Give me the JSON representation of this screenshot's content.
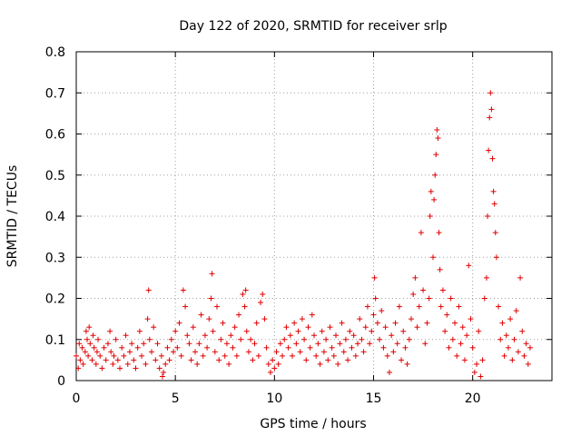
{
  "chart_data": {
    "type": "scatter",
    "title": "Day 122 of 2020, SRMTID for receiver srlp",
    "xlabel": "GPS time / hours",
    "ylabel": "SRMTID / TECUs",
    "xlim": [
      0,
      24
    ],
    "ylim": [
      0,
      0.8
    ],
    "xticks": [
      0,
      5,
      10,
      15,
      20
    ],
    "yticks": [
      0,
      0.1,
      0.2,
      0.3,
      0.4,
      0.5,
      0.6,
      0.7,
      0.8
    ],
    "xtick_labels": [
      "0",
      "5",
      "10",
      "15",
      "20"
    ],
    "ytick_labels": [
      "0",
      "0.1",
      "0.2",
      "0.3",
      "0.4",
      "0.5",
      "0.6",
      "0.7",
      "0.8"
    ],
    "grid": true,
    "marker": "+",
    "series": [
      {
        "name": "SRMTID",
        "color": "#e00000",
        "points": [
          [
            0.0,
            0.06
          ],
          [
            0.1,
            0.03
          ],
          [
            0.15,
            0.09
          ],
          [
            0.2,
            0.05
          ],
          [
            0.3,
            0.08
          ],
          [
            0.35,
            0.04
          ],
          [
            0.45,
            0.07
          ],
          [
            0.5,
            0.12
          ],
          [
            0.55,
            0.1
          ],
          [
            0.6,
            0.06
          ],
          [
            0.65,
            0.13
          ],
          [
            0.7,
            0.09
          ],
          [
            0.8,
            0.05
          ],
          [
            0.85,
            0.11
          ],
          [
            0.9,
            0.08
          ],
          [
            1.0,
            0.04
          ],
          [
            1.05,
            0.07
          ],
          [
            1.1,
            0.1
          ],
          [
            1.2,
            0.06
          ],
          [
            1.3,
            0.03
          ],
          [
            1.4,
            0.08
          ],
          [
            1.5,
            0.05
          ],
          [
            1.6,
            0.09
          ],
          [
            1.7,
            0.12
          ],
          [
            1.75,
            0.07
          ],
          [
            1.85,
            0.04
          ],
          [
            1.9,
            0.06
          ],
          [
            2.0,
            0.1
          ],
          [
            2.1,
            0.05
          ],
          [
            2.2,
            0.03
          ],
          [
            2.3,
            0.08
          ],
          [
            2.4,
            0.06
          ],
          [
            2.5,
            0.11
          ],
          [
            2.6,
            0.04
          ],
          [
            2.7,
            0.07
          ],
          [
            2.8,
            0.09
          ],
          [
            2.9,
            0.05
          ],
          [
            3.0,
            0.03
          ],
          [
            3.1,
            0.08
          ],
          [
            3.2,
            0.12
          ],
          [
            3.3,
            0.06
          ],
          [
            3.4,
            0.09
          ],
          [
            3.5,
            0.04
          ],
          [
            3.6,
            0.15
          ],
          [
            3.65,
            0.22
          ],
          [
            3.7,
            0.1
          ],
          [
            3.8,
            0.07
          ],
          [
            3.9,
            0.13
          ],
          [
            4.0,
            0.05
          ],
          [
            4.1,
            0.09
          ],
          [
            4.2,
            0.03
          ],
          [
            4.3,
            0.06
          ],
          [
            4.35,
            0.01
          ],
          [
            4.4,
            0.02
          ],
          [
            4.5,
            0.04
          ],
          [
            4.6,
            0.08
          ],
          [
            4.7,
            0.05
          ],
          [
            4.8,
            0.1
          ],
          [
            4.9,
            0.07
          ],
          [
            5.0,
            0.12
          ],
          [
            5.1,
            0.08
          ],
          [
            5.2,
            0.14
          ],
          [
            5.3,
            0.06
          ],
          [
            5.4,
            0.22
          ],
          [
            5.5,
            0.18
          ],
          [
            5.6,
            0.11
          ],
          [
            5.7,
            0.09
          ],
          [
            5.8,
            0.05
          ],
          [
            5.9,
            0.13
          ],
          [
            6.0,
            0.07
          ],
          [
            6.1,
            0.04
          ],
          [
            6.2,
            0.09
          ],
          [
            6.3,
            0.16
          ],
          [
            6.4,
            0.06
          ],
          [
            6.5,
            0.11
          ],
          [
            6.6,
            0.08
          ],
          [
            6.7,
            0.15
          ],
          [
            6.8,
            0.2
          ],
          [
            6.85,
            0.26
          ],
          [
            6.9,
            0.12
          ],
          [
            7.0,
            0.07
          ],
          [
            7.1,
            0.18
          ],
          [
            7.2,
            0.05
          ],
          [
            7.3,
            0.1
          ],
          [
            7.4,
            0.14
          ],
          [
            7.5,
            0.06
          ],
          [
            7.6,
            0.09
          ],
          [
            7.7,
            0.04
          ],
          [
            7.8,
            0.11
          ],
          [
            7.9,
            0.08
          ],
          [
            8.0,
            0.13
          ],
          [
            8.1,
            0.06
          ],
          [
            8.2,
            0.16
          ],
          [
            8.3,
            0.1
          ],
          [
            8.4,
            0.21
          ],
          [
            8.5,
            0.18
          ],
          [
            8.55,
            0.22
          ],
          [
            8.6,
            0.12
          ],
          [
            8.7,
            0.07
          ],
          [
            8.8,
            0.1
          ],
          [
            8.9,
            0.05
          ],
          [
            9.0,
            0.09
          ],
          [
            9.1,
            0.14
          ],
          [
            9.2,
            0.06
          ],
          [
            9.3,
            0.19
          ],
          [
            9.4,
            0.21
          ],
          [
            9.5,
            0.15
          ],
          [
            9.6,
            0.08
          ],
          [
            9.7,
            0.04
          ],
          [
            9.8,
            0.02
          ],
          [
            9.9,
            0.05
          ],
          [
            10.0,
            0.03
          ],
          [
            10.1,
            0.07
          ],
          [
            10.2,
            0.04
          ],
          [
            10.3,
            0.09
          ],
          [
            10.4,
            0.06
          ],
          [
            10.5,
            0.1
          ],
          [
            10.6,
            0.13
          ],
          [
            10.7,
            0.08
          ],
          [
            10.8,
            0.11
          ],
          [
            10.9,
            0.06
          ],
          [
            11.0,
            0.14
          ],
          [
            11.1,
            0.09
          ],
          [
            11.2,
            0.12
          ],
          [
            11.3,
            0.07
          ],
          [
            11.4,
            0.15
          ],
          [
            11.5,
            0.1
          ],
          [
            11.6,
            0.05
          ],
          [
            11.7,
            0.13
          ],
          [
            11.8,
            0.08
          ],
          [
            11.9,
            0.16
          ],
          [
            12.0,
            0.11
          ],
          [
            12.1,
            0.06
          ],
          [
            12.2,
            0.09
          ],
          [
            12.3,
            0.04
          ],
          [
            12.4,
            0.12
          ],
          [
            12.5,
            0.07
          ],
          [
            12.6,
            0.1
          ],
          [
            12.7,
            0.05
          ],
          [
            12.8,
            0.13
          ],
          [
            12.9,
            0.08
          ],
          [
            13.0,
            0.06
          ],
          [
            13.1,
            0.11
          ],
          [
            13.2,
            0.04
          ],
          [
            13.3,
            0.09
          ],
          [
            13.4,
            0.14
          ],
          [
            13.5,
            0.07
          ],
          [
            13.6,
            0.1
          ],
          [
            13.7,
            0.05
          ],
          [
            13.8,
            0.12
          ],
          [
            13.9,
            0.08
          ],
          [
            14.0,
            0.11
          ],
          [
            14.1,
            0.06
          ],
          [
            14.2,
            0.09
          ],
          [
            14.3,
            0.15
          ],
          [
            14.4,
            0.1
          ],
          [
            14.5,
            0.07
          ],
          [
            14.6,
            0.13
          ],
          [
            14.7,
            0.18
          ],
          [
            14.8,
            0.09
          ],
          [
            14.9,
            0.12
          ],
          [
            15.0,
            0.16
          ],
          [
            15.05,
            0.25
          ],
          [
            15.1,
            0.2
          ],
          [
            15.2,
            0.14
          ],
          [
            15.3,
            0.1
          ],
          [
            15.4,
            0.17
          ],
          [
            15.5,
            0.08
          ],
          [
            15.6,
            0.13
          ],
          [
            15.7,
            0.06
          ],
          [
            15.8,
            0.02
          ],
          [
            15.9,
            0.11
          ],
          [
            16.0,
            0.07
          ],
          [
            16.1,
            0.14
          ],
          [
            16.2,
            0.09
          ],
          [
            16.3,
            0.18
          ],
          [
            16.4,
            0.05
          ],
          [
            16.5,
            0.12
          ],
          [
            16.6,
            0.08
          ],
          [
            16.7,
            0.04
          ],
          [
            16.8,
            0.1
          ],
          [
            16.9,
            0.15
          ],
          [
            17.0,
            0.21
          ],
          [
            17.1,
            0.25
          ],
          [
            17.2,
            0.13
          ],
          [
            17.3,
            0.18
          ],
          [
            17.4,
            0.36
          ],
          [
            17.5,
            0.22
          ],
          [
            17.6,
            0.09
          ],
          [
            17.7,
            0.14
          ],
          [
            17.8,
            0.2
          ],
          [
            17.85,
            0.4
          ],
          [
            17.9,
            0.46
          ],
          [
            18.0,
            0.3
          ],
          [
            18.05,
            0.44
          ],
          [
            18.1,
            0.5
          ],
          [
            18.15,
            0.55
          ],
          [
            18.2,
            0.61
          ],
          [
            18.25,
            0.59
          ],
          [
            18.3,
            0.36
          ],
          [
            18.35,
            0.27
          ],
          [
            18.4,
            0.18
          ],
          [
            18.5,
            0.22
          ],
          [
            18.6,
            0.12
          ],
          [
            18.7,
            0.16
          ],
          [
            18.8,
            0.08
          ],
          [
            18.9,
            0.2
          ],
          [
            19.0,
            0.1
          ],
          [
            19.1,
            0.14
          ],
          [
            19.2,
            0.06
          ],
          [
            19.3,
            0.18
          ],
          [
            19.4,
            0.09
          ],
          [
            19.5,
            0.13
          ],
          [
            19.6,
            0.05
          ],
          [
            19.7,
            0.11
          ],
          [
            19.8,
            0.28
          ],
          [
            19.9,
            0.15
          ],
          [
            20.0,
            0.08
          ],
          [
            20.1,
            0.02
          ],
          [
            20.2,
            0.04
          ],
          [
            20.3,
            0.12
          ],
          [
            20.4,
            0.01
          ],
          [
            20.5,
            0.05
          ],
          [
            20.6,
            0.2
          ],
          [
            20.7,
            0.25
          ],
          [
            20.75,
            0.4
          ],
          [
            20.8,
            0.56
          ],
          [
            20.85,
            0.64
          ],
          [
            20.9,
            0.7
          ],
          [
            20.95,
            0.66
          ],
          [
            21.0,
            0.54
          ],
          [
            21.05,
            0.46
          ],
          [
            21.1,
            0.43
          ],
          [
            21.15,
            0.36
          ],
          [
            21.2,
            0.3
          ],
          [
            21.3,
            0.18
          ],
          [
            21.4,
            0.1
          ],
          [
            21.5,
            0.14
          ],
          [
            21.6,
            0.06
          ],
          [
            21.7,
            0.11
          ],
          [
            21.8,
            0.08
          ],
          [
            21.9,
            0.15
          ],
          [
            22.0,
            0.05
          ],
          [
            22.1,
            0.1
          ],
          [
            22.2,
            0.17
          ],
          [
            22.3,
            0.07
          ],
          [
            22.4,
            0.25
          ],
          [
            22.5,
            0.12
          ],
          [
            22.6,
            0.06
          ],
          [
            22.7,
            0.09
          ],
          [
            22.8,
            0.04
          ],
          [
            22.9,
            0.08
          ]
        ]
      }
    ]
  }
}
